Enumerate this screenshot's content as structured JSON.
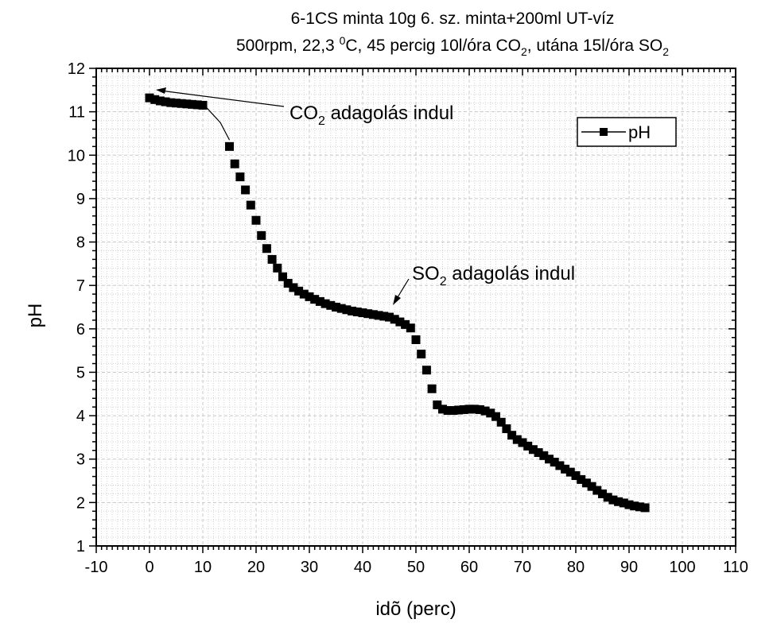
{
  "chart_data": {
    "type": "scatter",
    "title": "6-1CS minta 10g 6. sz. minta+200ml UT-víz",
    "subtitle_parts": [
      "500rpm, 22,3 ",
      "0",
      "C, 45 percig 10l/óra CO",
      "2",
      ", utána 15l/óra SO",
      "2"
    ],
    "xlabel": "idõ (perc)",
    "ylabel": "pH",
    "xlim": [
      -10,
      110
    ],
    "ylim": [
      1,
      12
    ],
    "x_ticks": [
      "-10",
      "0",
      "10",
      "20",
      "30",
      "40",
      "50",
      "60",
      "70",
      "80",
      "90",
      "100",
      "110"
    ],
    "y_ticks": [
      "1",
      "2",
      "3",
      "4",
      "5",
      "6",
      "7",
      "8",
      "9",
      "10",
      "11",
      "12"
    ],
    "grid": true,
    "legend": {
      "position": "top-right",
      "entries": [
        "pH"
      ]
    },
    "colors": {
      "marker": "#000000",
      "grid": "#c8c8c8",
      "axis": "#000000"
    },
    "annotations": [
      {
        "parts": [
          "CO",
          "2",
          " adagolás indul"
        ],
        "target": [
          1,
          11.32
        ]
      },
      {
        "parts": [
          "SO",
          "2",
          " adagolás indul"
        ],
        "target": [
          46.5,
          6.2
        ]
      }
    ],
    "series": [
      {
        "name": "pH",
        "x": [
          0,
          1,
          2,
          3,
          4,
          5,
          6,
          7,
          8,
          9,
          10,
          15,
          16,
          17,
          18,
          19,
          20,
          21,
          22,
          23,
          24,
          25,
          26,
          27,
          28,
          29,
          30,
          31,
          32,
          33,
          34,
          35,
          36,
          37,
          38,
          39,
          40,
          41,
          42,
          43,
          44,
          45,
          46,
          47,
          48,
          49,
          50,
          51,
          52,
          53,
          54,
          55,
          56,
          57,
          58,
          59,
          60,
          61,
          62,
          63,
          64,
          65,
          66,
          67,
          68,
          69,
          70,
          71,
          72,
          73,
          74,
          75,
          76,
          77,
          78,
          79,
          80,
          81,
          82,
          83,
          84,
          85,
          86,
          87,
          88,
          89,
          90,
          91,
          92,
          93
        ],
        "y": [
          11.32,
          11.28,
          11.25,
          11.23,
          11.21,
          11.2,
          11.19,
          11.18,
          11.17,
          11.16,
          11.15,
          10.2,
          9.8,
          9.5,
          9.2,
          8.85,
          8.5,
          8.15,
          7.85,
          7.6,
          7.4,
          7.2,
          7.05,
          6.95,
          6.87,
          6.8,
          6.74,
          6.68,
          6.63,
          6.58,
          6.54,
          6.5,
          6.47,
          6.44,
          6.41,
          6.39,
          6.37,
          6.35,
          6.33,
          6.31,
          6.29,
          6.27,
          6.22,
          6.16,
          6.1,
          6.02,
          5.75,
          5.42,
          5.05,
          4.62,
          4.25,
          4.15,
          4.12,
          4.12,
          4.13,
          4.14,
          4.15,
          4.15,
          4.14,
          4.11,
          4.06,
          3.98,
          3.85,
          3.7,
          3.55,
          3.45,
          3.38,
          3.3,
          3.22,
          3.15,
          3.08,
          3.0,
          2.93,
          2.85,
          2.77,
          2.7,
          2.62,
          2.53,
          2.45,
          2.37,
          2.28,
          2.2,
          2.12,
          2.06,
          2.02,
          1.99,
          1.95,
          1.92,
          1.9,
          1.88
        ]
      }
    ]
  }
}
